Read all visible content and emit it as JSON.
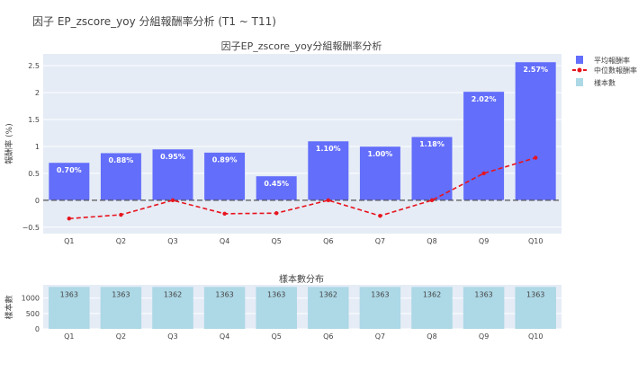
{
  "page_title": "因子 EP_zscore_yoy 分組報酬率分析 (T1 ~ T11)",
  "chart_data": [
    {
      "type": "bar",
      "title": "因子EP_zscore_yoy分組報酬率分析",
      "ylabel": "報酬率 (%)",
      "categories": [
        "Q1",
        "Q2",
        "Q3",
        "Q4",
        "Q5",
        "Q6",
        "Q7",
        "Q8",
        "Q9",
        "Q10"
      ],
      "ylim": [
        -0.62,
        2.72
      ],
      "yticks": [
        -0.5,
        0,
        0.5,
        1,
        1.5,
        2,
        2.5
      ],
      "ytick_labels": [
        "−0.5",
        "0",
        "0.5",
        "1",
        "1.5",
        "2",
        "2.5"
      ],
      "grid": true,
      "zero_line": "dashed",
      "legend_position": "right",
      "series": [
        {
          "name": "平均報酬率",
          "type": "bar",
          "color": "#636efa",
          "values": [
            0.7,
            0.88,
            0.95,
            0.89,
            0.45,
            1.1,
            1.0,
            1.18,
            2.02,
            2.57
          ],
          "labels": [
            "0.70%",
            "0.88%",
            "0.95%",
            "0.89%",
            "0.45%",
            "1.10%",
            "1.00%",
            "1.18%",
            "2.02%",
            "2.57%"
          ]
        },
        {
          "name": "中位數報酬率",
          "type": "line",
          "style": "dashed",
          "color": "#e8141e",
          "values": [
            -0.34,
            -0.27,
            0.0,
            -0.25,
            -0.24,
            0.0,
            -0.29,
            0.0,
            0.5,
            0.79
          ]
        }
      ],
      "legend_extra": {
        "name": "樣本數",
        "color": "#add8e6"
      }
    },
    {
      "type": "bar",
      "title": "樣本數分布",
      "ylabel": "樣本數",
      "categories": [
        "Q1",
        "Q2",
        "Q3",
        "Q4",
        "Q5",
        "Q6",
        "Q7",
        "Q8",
        "Q9",
        "Q10"
      ],
      "ylim": [
        0,
        1430
      ],
      "yticks": [
        0,
        500,
        1000
      ],
      "grid": true,
      "series": [
        {
          "name": "樣本數",
          "color": "#add8e6",
          "values": [
            1363,
            1363,
            1362,
            1363,
            1363,
            1362,
            1363,
            1362,
            1363,
            1363
          ]
        }
      ]
    }
  ]
}
